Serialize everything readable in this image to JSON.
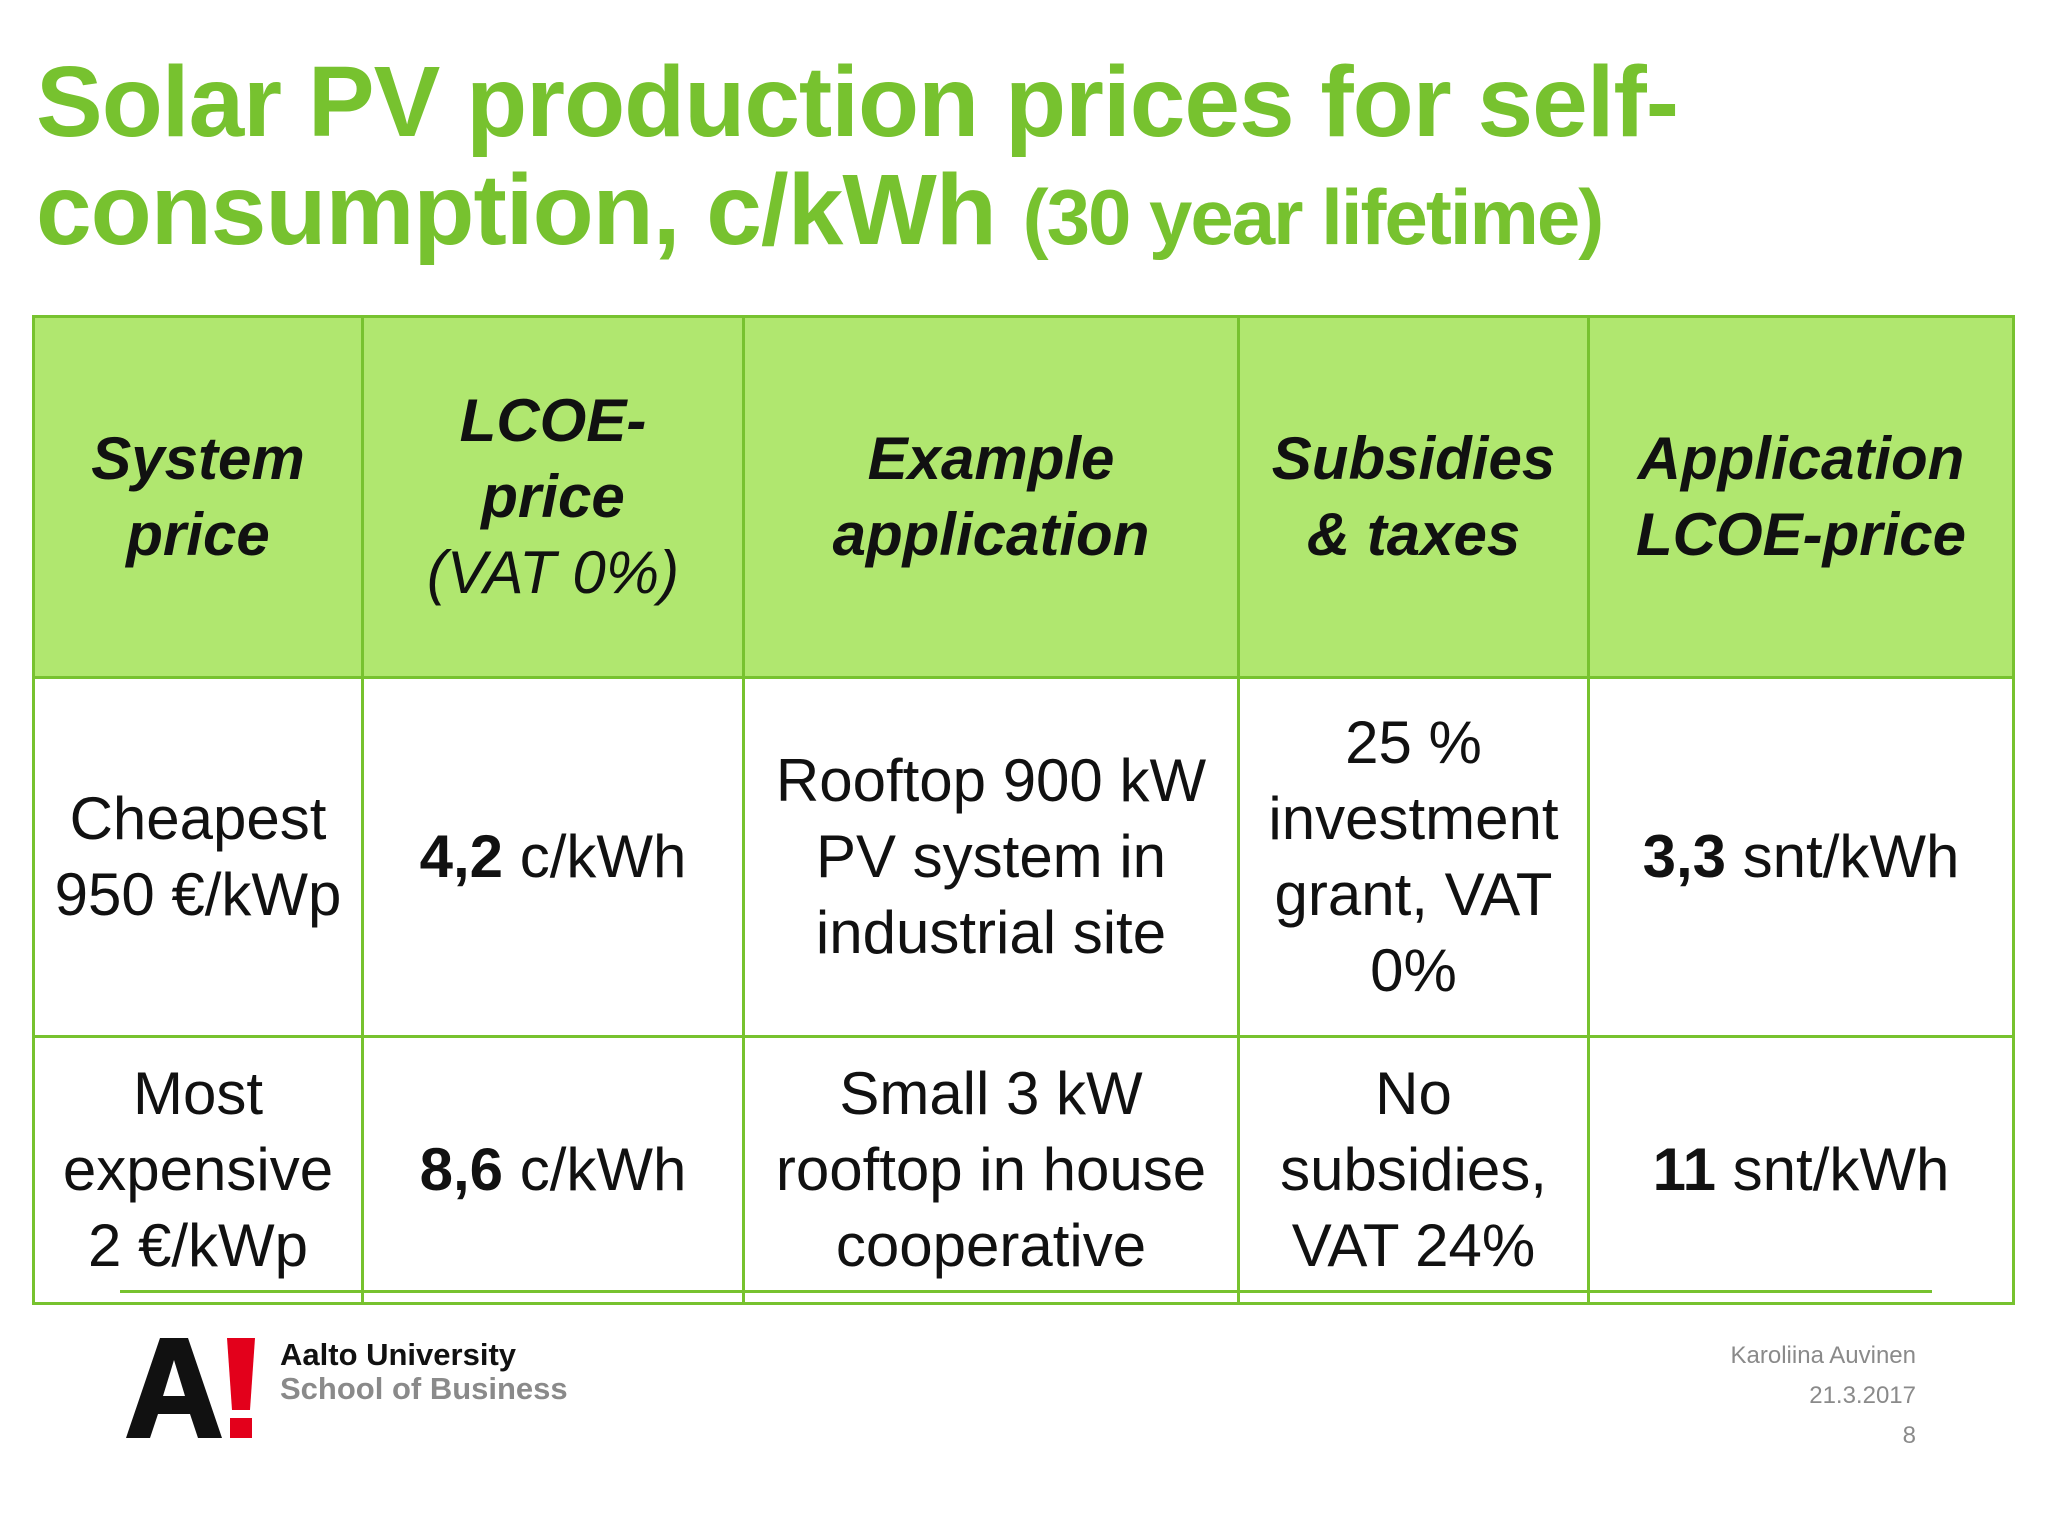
{
  "title": {
    "main": "Solar PV production prices for self-consumption, c/kWh",
    "sub": "(30 year lifetime)"
  },
  "table": {
    "headers": [
      {
        "label": "System\nprice"
      },
      {
        "label": "LCOE-\nprice",
        "sublabel": "(VAT 0%)"
      },
      {
        "label": "Example\napplication"
      },
      {
        "label": "Subsidies\n& taxes"
      },
      {
        "label": "Application\nLCOE-price"
      }
    ],
    "rows": [
      {
        "system_price": "Cheapest\n950 €/kWp",
        "lcoe_value": "4,2",
        "lcoe_unit": " c/kWh",
        "example": "Rooftop 900 kW\nPV system in\nindustrial site",
        "subsidies": "25 %\ninvestment\ngrant, VAT\n0%",
        "app_value": "3,3",
        "app_unit": " snt/kWh"
      },
      {
        "system_price": "Most\nexpensive\n2 €/kWp",
        "lcoe_value": "8,6",
        "lcoe_unit": " c/kWh",
        "example": "Small 3 kW\nrooftop in house\ncooperative",
        "subsidies": "No\nsubsidies,\nVAT 24%",
        "app_value": "11",
        "app_unit": " snt/kWh"
      }
    ]
  },
  "footer": {
    "logo_text": "A!",
    "university": "Aalto University",
    "school": "School of Business",
    "author": "Karoliina Auvinen",
    "date": "21.3.2017",
    "page": "8"
  },
  "colors": {
    "accent": "#77c22f",
    "header_fill": "#b0e76f",
    "logo_red": "#e3001b"
  }
}
